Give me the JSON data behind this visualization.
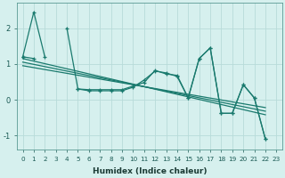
{
  "xlabel": "Humidex (Indice chaleur)",
  "background_color": "#d6f0ee",
  "grid_color": "#b8dbd9",
  "line_color": "#1a7a6e",
  "xlim": [
    -0.5,
    23.5
  ],
  "ylim": [
    -1.4,
    2.7
  ],
  "yticks": [
    -1,
    0,
    1,
    2
  ],
  "xticks": [
    0,
    1,
    2,
    3,
    4,
    5,
    6,
    7,
    8,
    9,
    10,
    11,
    12,
    13,
    14,
    15,
    16,
    17,
    18,
    19,
    20,
    21,
    22,
    23
  ],
  "series_jagged_y": [
    1.2,
    2.45,
    1.2,
    null,
    2.0,
    0.3,
    0.25,
    0.25,
    0.25,
    0.25,
    0.35,
    0.55,
    0.8,
    0.75,
    0.65,
    0.05,
    1.15,
    1.45,
    -0.38,
    -0.38,
    0.42,
    0.05,
    -1.1,
    null
  ],
  "series_mid_y": [
    1.2,
    1.15,
    null,
    null,
    null,
    0.3,
    0.28,
    0.28,
    0.28,
    0.28,
    0.38,
    0.48,
    0.82,
    0.72,
    0.68,
    0.05,
    1.15,
    1.45,
    -0.38,
    -0.38,
    0.42,
    0.05,
    -1.1,
    null
  ],
  "reg_lines": [
    {
      "x": [
        0,
        22
      ],
      "y": [
        1.15,
        -0.42
      ]
    },
    {
      "x": [
        0,
        22
      ],
      "y": [
        1.05,
        -0.32
      ]
    },
    {
      "x": [
        0,
        22
      ],
      "y": [
        0.95,
        -0.22
      ]
    }
  ]
}
